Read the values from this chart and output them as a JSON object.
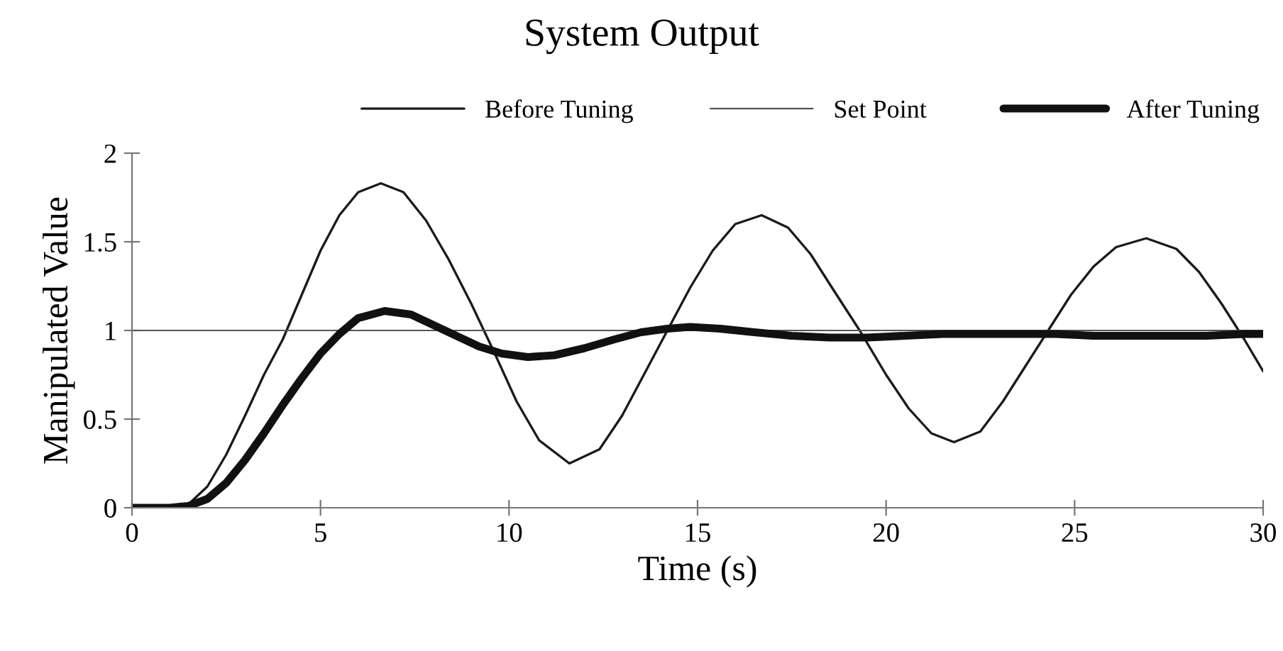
{
  "chart_data": {
    "type": "line",
    "title": "System Output",
    "xlabel": "Time (s)",
    "ylabel": "Manipulated Value",
    "xlim": [
      0,
      30
    ],
    "xticks": [
      0,
      5,
      10,
      15,
      20,
      25,
      30
    ],
    "ylim": [
      0,
      2
    ],
    "yticks": [
      0,
      0.5,
      1,
      1.5,
      2
    ],
    "grid": false,
    "legend": "top",
    "marker": "none",
    "line_style": "solid",
    "series": [
      {
        "name": "Before Tuning",
        "color": "#1a1a1a",
        "x": [
          0,
          1,
          1.5,
          2,
          2.5,
          3,
          3.5,
          4,
          4.5,
          5,
          5.5,
          6,
          6.6,
          7.2,
          7.8,
          8.4,
          9,
          9.6,
          10.2,
          10.8,
          11.6,
          12.4,
          13,
          13.6,
          14.2,
          14.8,
          15.4,
          16,
          16.7,
          17.4,
          18,
          18.6,
          19.3,
          20,
          20.6,
          21.2,
          21.8,
          22.5,
          23.1,
          23.7,
          24.3,
          24.9,
          25.5,
          26.1,
          26.9,
          27.7,
          28.3,
          28.9,
          29.5,
          30
        ],
        "values": [
          0,
          0,
          0.02,
          0.12,
          0.3,
          0.52,
          0.75,
          0.95,
          1.2,
          1.45,
          1.65,
          1.78,
          1.83,
          1.78,
          1.62,
          1.4,
          1.15,
          0.88,
          0.6,
          0.38,
          0.25,
          0.33,
          0.52,
          0.76,
          1.0,
          1.24,
          1.45,
          1.6,
          1.65,
          1.58,
          1.43,
          1.23,
          1.0,
          0.75,
          0.56,
          0.42,
          0.37,
          0.43,
          0.6,
          0.8,
          1.0,
          1.2,
          1.36,
          1.47,
          1.52,
          1.46,
          1.33,
          1.15,
          0.95,
          0.77
        ]
      },
      {
        "name": "Set Point",
        "color": "#555555",
        "x": [
          0,
          30
        ],
        "values": [
          1,
          1
        ]
      },
      {
        "name": "After Tuning",
        "color": "#111111",
        "x": [
          0,
          1,
          1.5,
          2,
          2.5,
          3,
          3.5,
          4,
          4.5,
          5,
          5.5,
          6,
          6.7,
          7.4,
          8,
          8.6,
          9.2,
          9.8,
          10.5,
          11.2,
          12,
          12.8,
          13.5,
          14.2,
          14.8,
          15.6,
          16.5,
          17.5,
          18.5,
          19.5,
          20.5,
          21.5,
          22.5,
          23.5,
          24.5,
          25.5,
          26.5,
          27.5,
          28.5,
          29.5,
          30
        ],
        "values": [
          0,
          0,
          0.01,
          0.05,
          0.14,
          0.27,
          0.42,
          0.58,
          0.73,
          0.87,
          0.98,
          1.07,
          1.11,
          1.09,
          1.03,
          0.97,
          0.91,
          0.87,
          0.85,
          0.86,
          0.9,
          0.95,
          0.99,
          1.01,
          1.02,
          1.01,
          0.99,
          0.97,
          0.96,
          0.96,
          0.97,
          0.98,
          0.98,
          0.98,
          0.98,
          0.97,
          0.97,
          0.97,
          0.97,
          0.98,
          0.98
        ]
      }
    ]
  }
}
